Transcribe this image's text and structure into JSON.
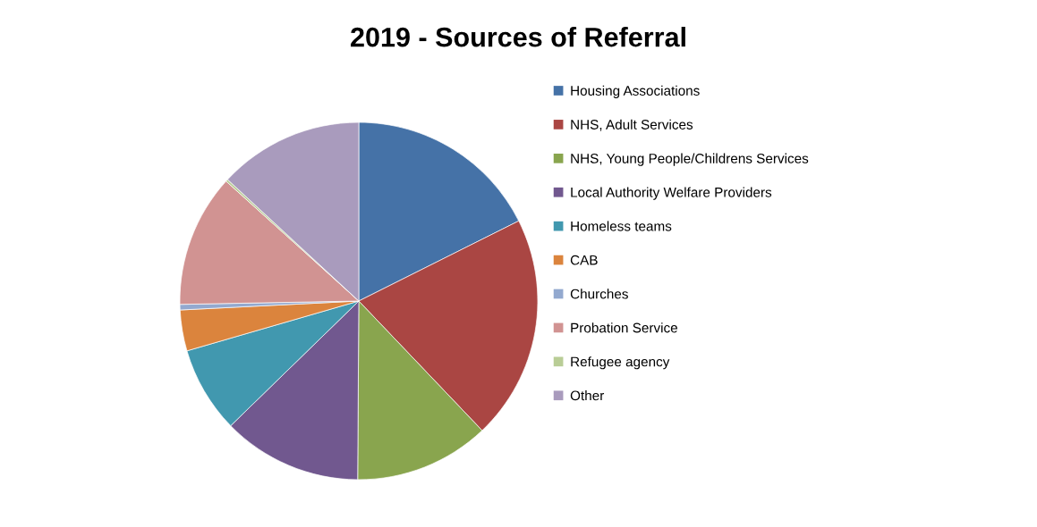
{
  "chart_data": {
    "type": "pie",
    "title": "2019 - Sources of Referral",
    "categories": [
      "Housing Associations",
      "NHS, Adult Services",
      "NHS, Young People/Childrens Services",
      "Local Authority Welfare Providers",
      "Homeless teams",
      "CAB",
      "Churches",
      "Probation Service",
      "Refugee agency",
      "Other"
    ],
    "values": [
      17.6,
      20.3,
      12.2,
      12.6,
      7.8,
      3.7,
      0.5,
      12.0,
      0.2,
      13.1
    ],
    "colors": [
      "#4572a7",
      "#aa4643",
      "#89a54e",
      "#71588f",
      "#4198af",
      "#db843d",
      "#93a9cf",
      "#d19392",
      "#b9cd96",
      "#a99bbd"
    ],
    "legend": "right"
  }
}
